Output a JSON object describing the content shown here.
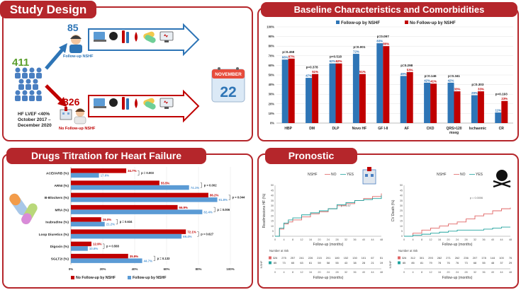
{
  "sections": {
    "study_design": "Study Design",
    "baseline": "Baseline Characteristics and Comorbidities",
    "drugs": "Drugs Titration for Heart Failure",
    "pronostic": "Pronostic"
  },
  "study": {
    "total": "411",
    "followup_n": "85",
    "followup_label": "Follow-up NSHF",
    "nofollowup_n": "326",
    "nofollowup_label": "No Follow-up NSHF",
    "criteria": [
      "HF LVEF <40%",
      "October 2017 –",
      "December 2020"
    ],
    "calendar_month": "NOVEMBER",
    "calendar_day": "22",
    "colors": {
      "followup": "#2e75b6",
      "nofollowup": "#c00000",
      "total": "#5b9e2d"
    }
  },
  "baseline_legend": [
    "Follow-up by NSHF",
    "No Follow-up by NSHF"
  ],
  "drugs_legend": [
    "No Follow-up by NSHF",
    "Follow-up by NSHF"
  ],
  "chart_data": [
    {
      "type": "bar",
      "categories": [
        "HBP",
        "DM",
        "DLP",
        "Novo HF",
        "GF I-II",
        "AF",
        "CKD",
        "QRS>120 mseg",
        "Ischaemic",
        "CR"
      ],
      "series": [
        {
          "name": "Follow-up by NSHF",
          "values": [
            66,
            47,
            62,
            72,
            83,
            49,
            42,
            42,
            29,
            11
          ],
          "color": "#2e75b6"
        },
        {
          "name": "No Follow-up by NSHF",
          "values": [
            67,
            51,
            62,
            51,
            80,
            53,
            41,
            33,
            33,
            23
          ],
          "color": "#c00000"
        }
      ],
      "pvalues": [
        "p=0.458",
        "p=0.378",
        "p=0.518",
        "p=0.001",
        "p=0.097",
        "p=0.298",
        "p=0.146",
        "p=0.341",
        "p=0.303",
        "p=0.193"
      ],
      "yticks": [
        "0%",
        "10%",
        "20%",
        "30%",
        "40%",
        "50%",
        "60%",
        "70%",
        "80%",
        "90%",
        "100%"
      ],
      "ylim": [
        0,
        100
      ]
    },
    {
      "type": "bar",
      "orientation": "horizontal",
      "categories": [
        "ACEI/ARB (%)",
        "ARNI (%)",
        "B-Blockers (%)",
        "MRA (%)",
        "Ivabradine (%)",
        "Loop Diuretics (%)",
        "Digoxin (%)",
        "SGLT2i (%)"
      ],
      "series": [
        {
          "name": "No Follow-up by NSHF",
          "values": [
            34.7,
            55.5,
            86.2,
            66.9,
            19.0,
            72.1,
            12.9,
            35.9
          ],
          "labels": [
            "34.7%",
            "55.5%",
            "86.2%",
            "66.9%",
            "19.0%",
            "72.1%",
            "12.9%",
            "35.9%"
          ],
          "color": "#c00000"
        },
        {
          "name": "Follow-up by NSHF",
          "values": [
            17.6,
            74.1,
            91.8,
            82.4,
            21.2,
            69.4,
            10.6,
            44.7
          ],
          "labels": [
            "17.6%",
            "74.1%",
            "91.8%",
            "82.4%",
            "21.2%",
            "69.4%",
            "10.6%",
            "44.7%"
          ],
          "color": "#5b9bd5"
        }
      ],
      "pvalues": [
        "p = 0.003",
        "p = 0.002",
        "p = 0.044",
        "p = 0.006",
        "p = 0.634",
        "p = 0.627",
        "p = 0.568",
        "p = 0.133"
      ],
      "xticks": [
        "0%",
        "20%",
        "40%",
        "60%",
        "80%",
        "100%"
      ],
      "xlim": [
        0,
        100
      ]
    },
    {
      "type": "line",
      "title": "NSHF",
      "legend": [
        "NO",
        "YES"
      ],
      "ylabel": "Readmissions HF (%)",
      "xlabel": "Follow-up (months)",
      "yticks": [
        "0",
        "5",
        "10",
        "15",
        "20",
        "25",
        "30",
        "35",
        "40",
        "45",
        "50"
      ],
      "xticks": [
        "0",
        "4",
        "8",
        "12",
        "16",
        "20",
        "24",
        "28",
        "32",
        "36",
        "40",
        "44",
        "48"
      ],
      "ylim": [
        0,
        50
      ],
      "xlim": [
        0,
        48
      ],
      "pvalue": "p = 0.57",
      "x": [
        0,
        2,
        4,
        6,
        8,
        12,
        16,
        20,
        24,
        28,
        32,
        36,
        40,
        44,
        48
      ],
      "series": [
        {
          "name": "NO",
          "color": "#e06666",
          "values": [
            0,
            7,
            12,
            14,
            16,
            19,
            22,
            24,
            27,
            30,
            32,
            35,
            37,
            39,
            42
          ]
        },
        {
          "name": "YES",
          "color": "#20a39e",
          "values": [
            0,
            8,
            13,
            16,
            18,
            21,
            23,
            25,
            27,
            31,
            33,
            35,
            36,
            37,
            40
          ]
        }
      ],
      "risk_table": {
        "header": "Number at risk",
        "axis_label": "NSHF",
        "rows": [
          {
            "color": "#e06666",
            "values": [
              "326",
              "275",
              "257",
              "241",
              "226",
              "215",
              "201",
              "180",
              "152",
              "130",
              "101",
              "67",
              "51"
            ]
          },
          {
            "color": "#20a39e",
            "values": [
              "85",
              "73",
              "65",
              "63",
              "61",
              "59",
              "58",
              "55",
              "43",
              "38",
              "28",
              "21",
              "19"
            ]
          }
        ],
        "xlabel": "Follow-up (months)"
      }
    },
    {
      "type": "line",
      "title": "NSHF",
      "legend": [
        "NO",
        "YES"
      ],
      "ylabel": "CV Death (%)",
      "xlabel": "Follow-up (months)",
      "yticks": [
        "0",
        "5",
        "10",
        "15",
        "20",
        "25",
        "30",
        "35",
        "40",
        "45",
        "50"
      ],
      "xticks": [
        "0",
        "4",
        "8",
        "12",
        "16",
        "20",
        "24",
        "28",
        "32",
        "36",
        "40",
        "44",
        "48"
      ],
      "ylim": [
        0,
        50
      ],
      "xlim": [
        0,
        48
      ],
      "pvalue": "p = 0.0006",
      "x": [
        0,
        4,
        8,
        12,
        16,
        20,
        24,
        28,
        32,
        36,
        40,
        44,
        48
      ],
      "series": [
        {
          "name": "NO",
          "color": "#e06666",
          "values": [
            0,
            3,
            6,
            8,
            10,
            12,
            14,
            17,
            20,
            22,
            25,
            27,
            28
          ]
        },
        {
          "name": "YES",
          "color": "#20a39e",
          "values": [
            0,
            1,
            2,
            3,
            4,
            5,
            6,
            6,
            6,
            7,
            8,
            9,
            9
          ]
        }
      ],
      "risk_table": {
        "header": "Number at risk",
        "axis_label": "NSHF",
        "rows": [
          {
            "color": "#e06666",
            "values": [
              "326",
              "312",
              "301",
              "293",
              "282",
              "271",
              "262",
              "236",
              "207",
              "178",
              "144",
              "100",
              "76"
            ]
          },
          {
            "color": "#20a39e",
            "values": [
              "85",
              "85",
              "81",
              "79",
              "78",
              "76",
              "76",
              "73",
              "68",
              "55",
              "48",
              "37",
              "29"
            ]
          }
        ],
        "xlabel": "Follow-up (months)"
      }
    }
  ]
}
